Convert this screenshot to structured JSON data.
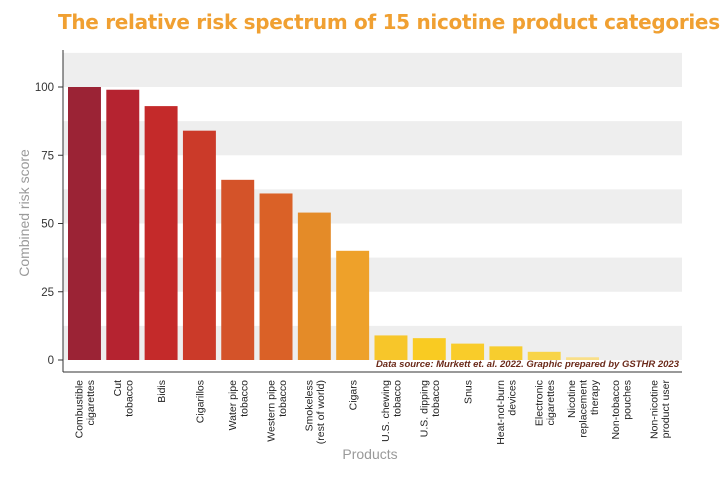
{
  "title": "The relative risk spectrum of 15 nicotine product categories",
  "source_note": "Data source: Murkett et. al. 2022. Graphic prepared by GSTHR 2023",
  "chart_data": {
    "type": "bar",
    "title": "The relative risk spectrum of 15 nicotine product categories",
    "xlabel": "Products",
    "ylabel": "Combined risk score",
    "ylim": [
      0,
      110
    ],
    "yticks": [
      0,
      25,
      50,
      75,
      100
    ],
    "grid": "horizontal alternating bands",
    "categories": [
      [
        "Combustible",
        "cigarettes"
      ],
      [
        "Cut",
        "tobacco"
      ],
      [
        "Bidis"
      ],
      [
        "Cigarillos"
      ],
      [
        "Water pipe",
        "tobacco"
      ],
      [
        "Western pipe",
        "tobacco"
      ],
      [
        "Smokeless",
        "(rest of world)"
      ],
      [
        "Cigars"
      ],
      [
        "U.S. chewing",
        "tobacco"
      ],
      [
        "U.S. dipping",
        "tobacco"
      ],
      [
        "Snus"
      ],
      [
        "Heat-not-burn",
        "devices"
      ],
      [
        "Electronic",
        "cigarettes"
      ],
      [
        "Nicotine",
        "replacement",
        "therapy"
      ],
      [
        "Non-tobacco",
        "pouches"
      ],
      [
        "Non-nicotine",
        "product user"
      ]
    ],
    "values": [
      100,
      99,
      93,
      84,
      66,
      61,
      54,
      40,
      9,
      8,
      6,
      5,
      3,
      1,
      0,
      0
    ],
    "colors": [
      "#9b2335",
      "#b52330",
      "#c42a2a",
      "#cb3a29",
      "#d45329",
      "#da6127",
      "#e48b28",
      "#eea12a",
      "#f7c62a",
      "#f9cb22",
      "#f9cc2a",
      "#f7cd2e",
      "#f8d448",
      "#f9df88",
      "#f9e3a0",
      "#ffffff"
    ]
  }
}
